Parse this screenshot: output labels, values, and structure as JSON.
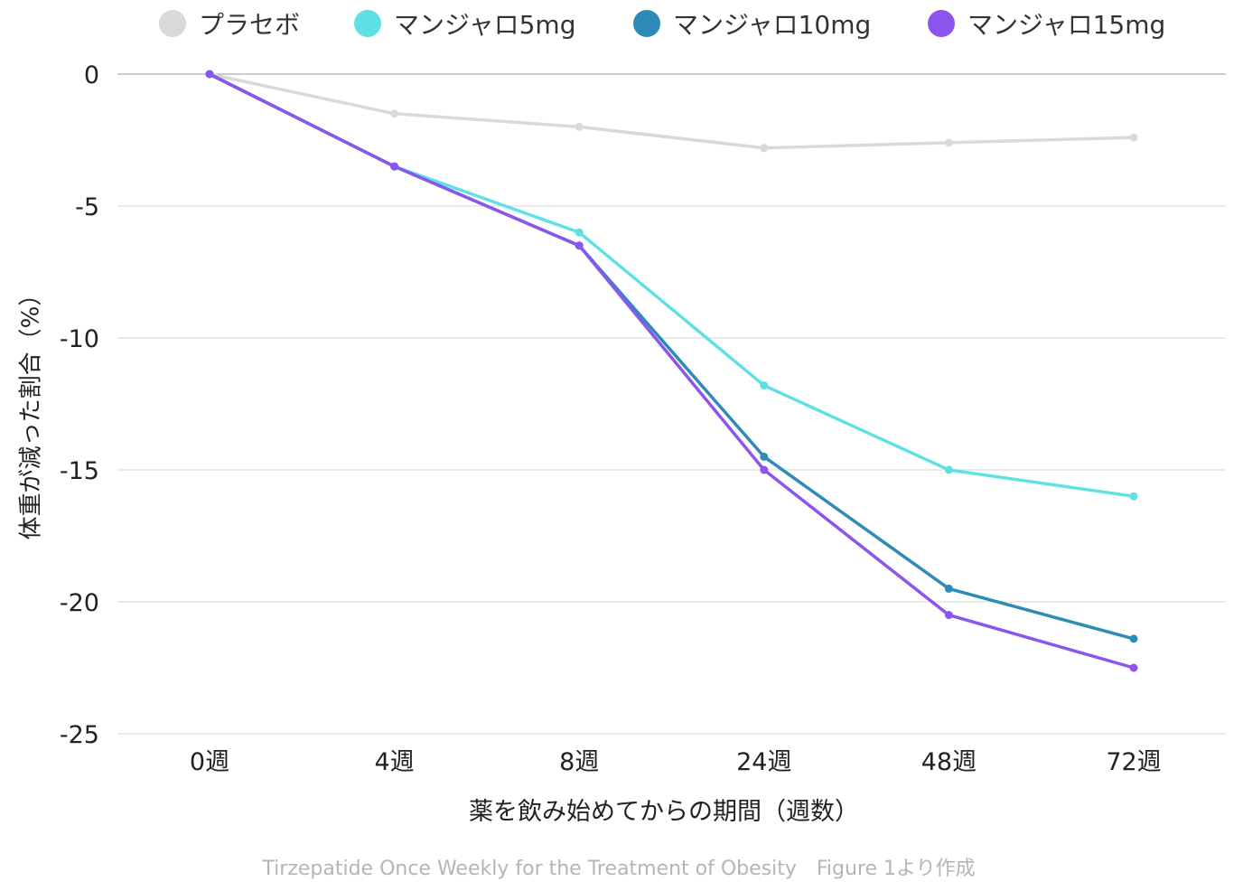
{
  "chart_data": {
    "type": "line",
    "title": "",
    "xlabel": "薬を飲み始めてからの期間（週数）",
    "ylabel": "体重が減った割合（%）",
    "categories": [
      "0週",
      "4週",
      "8週",
      "24週",
      "48週",
      "72週"
    ],
    "yticks": [
      "0",
      "-5",
      "-10",
      "-15",
      "-20",
      "-25"
    ],
    "ytick_values": [
      0,
      -5,
      -10,
      -15,
      -20,
      -25
    ],
    "ylim": [
      -25,
      0
    ],
    "grid": true,
    "legend_position": "top",
    "series": [
      {
        "name": "プラセボ",
        "color": "#d9d9d9",
        "values": [
          0,
          -1.5,
          -2.0,
          -2.8,
          -2.6,
          -2.4
        ]
      },
      {
        "name": "マンジャロ5mg",
        "color": "#5fe0e4",
        "values": [
          0,
          -3.5,
          -6.0,
          -11.8,
          -15.0,
          -16.0
        ]
      },
      {
        "name": "マンジャロ10mg",
        "color": "#2e8bb7",
        "values": [
          0,
          -3.5,
          -6.5,
          -14.5,
          -19.5,
          -21.4
        ]
      },
      {
        "name": "マンジャロ15mg",
        "color": "#8b55ee",
        "values": [
          0,
          -3.5,
          -6.5,
          -15.0,
          -20.5,
          -22.5
        ]
      }
    ]
  },
  "footer": "Tirzepatide Once Weekly for the Treatment of Obesity　Figure 1より作成"
}
